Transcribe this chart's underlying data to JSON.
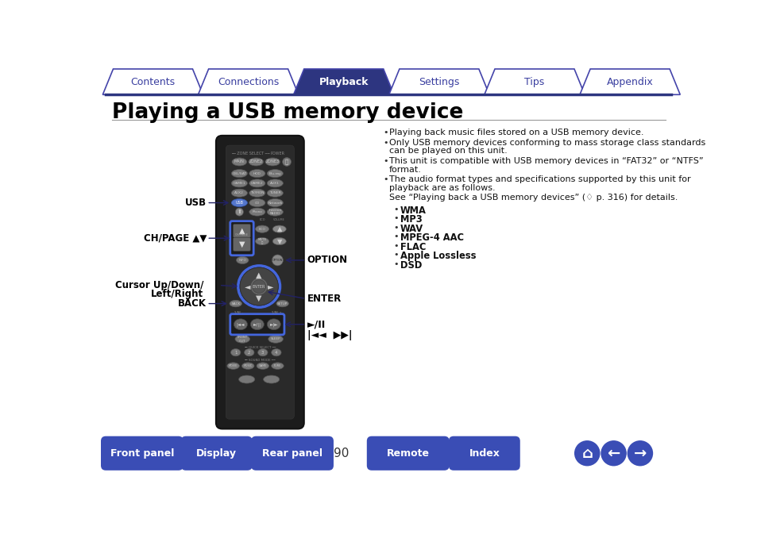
{
  "title": "Playing a USB memory device",
  "bg_color": "#ffffff",
  "nav_tabs": [
    "Contents",
    "Connections",
    "Playback",
    "Settings",
    "Tips",
    "Appendix"
  ],
  "nav_active": 2,
  "nav_color_active": "#2d3580",
  "nav_color_inactive": "#ffffff",
  "nav_border_color": "#4444aa",
  "nav_text_color_active": "#ffffff",
  "nav_text_color_inactive": "#3a3fa0",
  "bottom_buttons": [
    "Front panel",
    "Display",
    "Rear panel",
    "Remote",
    "Index"
  ],
  "bottom_btn_color": "#3a4db5",
  "bottom_btn_text_color": "#ffffff",
  "page_number": "90",
  "title_color": "#000000",
  "divider_color": "#2d3580",
  "body_text_color": "#000000",
  "bullet_main": [
    "Playing back music files stored on a USB memory device.",
    "Only USB memory devices conforming to mass storage class standards\ncan be played on this unit.",
    "This unit is compatible with USB memory devices in “FAT32” or “NTFS”\nformat.",
    "The audio format types and specifications supported by this unit for\nplayback are as follows."
  ],
  "bullet_see": "See “Playing back a USB memory devices” (♢ p. 316) for details.",
  "sub_bullets": [
    "WMA",
    "MP3",
    "WAV",
    "MPEG-4 AAC",
    "FLAC",
    "Apple Lossless",
    "DSD"
  ],
  "label_usb": "USB",
  "label_chpage": "CH/PAGE ▲▼",
  "label_cursor": "Cursor Up/Down/\nLeft/Right",
  "label_back": "BACK",
  "label_option": "OPTION",
  "label_enter": "ENTER",
  "label_play": "►/❙❙",
  "label_skip": "◄◄◄ ►►►",
  "remote_body_color": "#1a1a1a",
  "remote_btn_color": "#aaaaaa",
  "remote_btn_dark": "#888888",
  "remote_highlight": "#5577cc",
  "remote_blue_ring": "#3355bb",
  "nav_dpad_color": "#333333",
  "nav_dpad_ring": "#4466dd",
  "label_color": "#000000",
  "accent_color": "#3a4db5",
  "arrow_color": "#222266",
  "ch_box_color": "#4466dd"
}
